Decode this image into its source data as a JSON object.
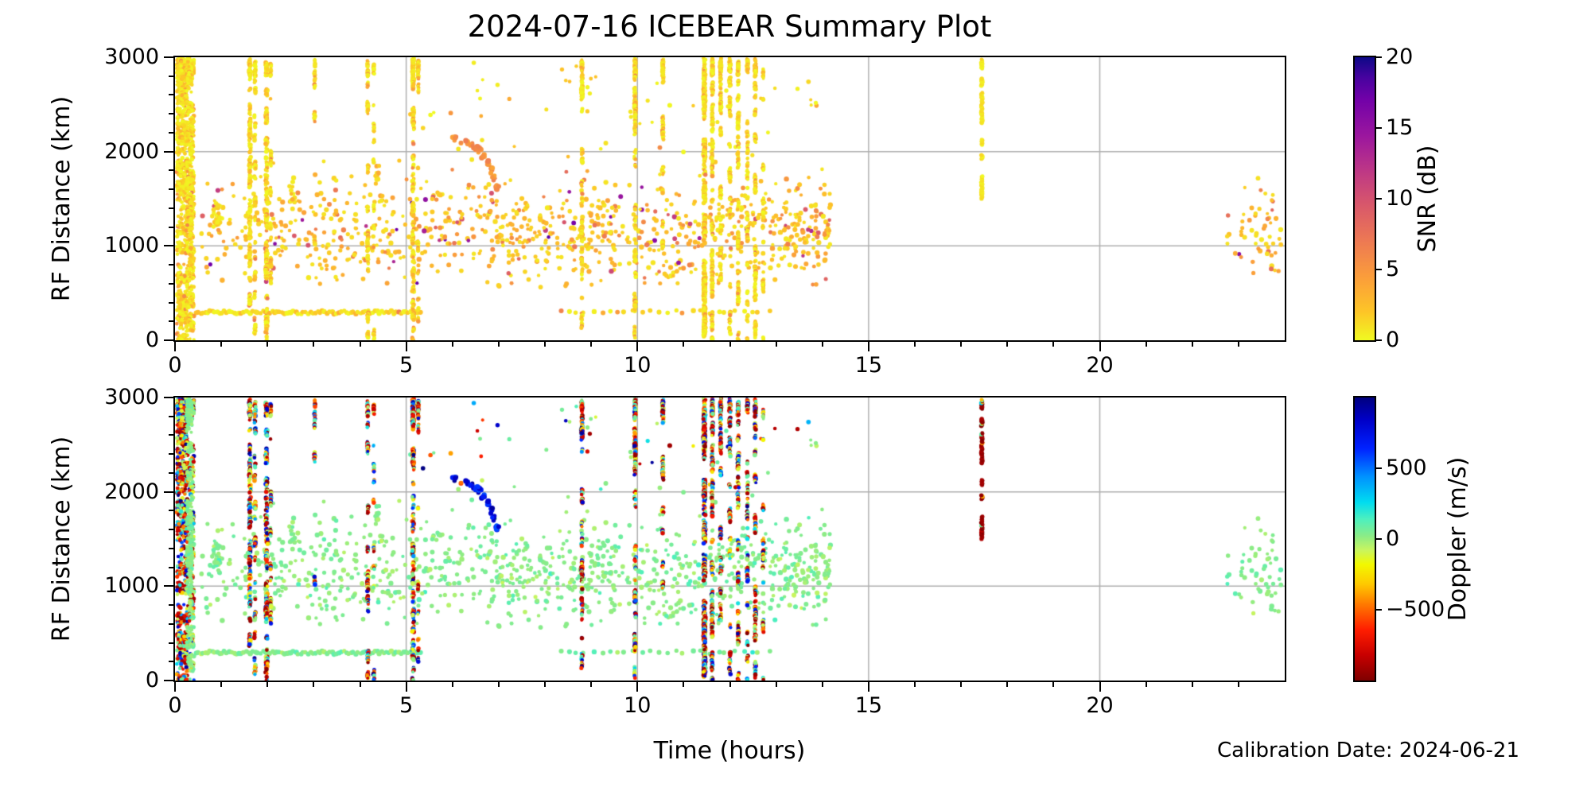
{
  "figure": {
    "title": "2024-07-16 ICEBEAR Summary Plot",
    "calibration_note": "Calibration Date: 2024-06-21",
    "background": "#ffffff",
    "grid_color": "#b0b0b0",
    "spine_color": "#000000"
  },
  "axes": {
    "x": {
      "label": "Time (hours)",
      "min": 0,
      "max": 24,
      "major_ticks": [
        0,
        5,
        10,
        15,
        20
      ],
      "major_tick_labels": [
        "0",
        "5",
        "10",
        "15",
        "20"
      ],
      "minor_tick_every": 1,
      "grid": true
    },
    "y": {
      "label": "RF Distance (km)",
      "min": 0,
      "max": 3000,
      "major_ticks": [
        0,
        1000,
        2000,
        3000
      ],
      "major_tick_labels": [
        "0",
        "1000",
        "2000",
        "3000"
      ],
      "minor_tick_every": 200,
      "grid": true
    }
  },
  "colorbars": {
    "snr": {
      "label": "SNR (dB)",
      "min": 0,
      "max": 20,
      "ticks": [
        0,
        5,
        10,
        15,
        20
      ],
      "tick_labels": [
        "0",
        "5",
        "10",
        "15",
        "20"
      ],
      "colormap": "plasma_r",
      "stops": [
        {
          "p": 0.0,
          "c": "#f0f921"
        },
        {
          "p": 0.1,
          "c": "#fdc527"
        },
        {
          "p": 0.22,
          "c": "#fb9e3a"
        },
        {
          "p": 0.35,
          "c": "#ed7953"
        },
        {
          "p": 0.48,
          "c": "#d8576b"
        },
        {
          "p": 0.6,
          "c": "#bd3786"
        },
        {
          "p": 0.72,
          "c": "#9c179e"
        },
        {
          "p": 0.85,
          "c": "#7201a8"
        },
        {
          "p": 0.93,
          "c": "#46039f"
        },
        {
          "p": 1.0,
          "c": "#0d0887"
        }
      ]
    },
    "doppler": {
      "label": "Doppler (m/s)",
      "min": -1000,
      "max": 1000,
      "ticks": [
        -500,
        0,
        500
      ],
      "tick_labels": [
        "−500",
        "0",
        "500"
      ],
      "colormap": "jet_r",
      "stops": [
        {
          "p": 0.0,
          "c": "#7f0000"
        },
        {
          "p": 0.09,
          "c": "#c80000"
        },
        {
          "p": 0.18,
          "c": "#ff1e00"
        },
        {
          "p": 0.27,
          "c": "#ff7a00"
        },
        {
          "p": 0.34,
          "c": "#ffc800"
        },
        {
          "p": 0.41,
          "c": "#f2f900"
        },
        {
          "p": 0.46,
          "c": "#c9f55e"
        },
        {
          "p": 0.51,
          "c": "#8cec86"
        },
        {
          "p": 0.57,
          "c": "#4df0be"
        },
        {
          "p": 0.63,
          "c": "#00dcf0"
        },
        {
          "p": 0.72,
          "c": "#0092ff"
        },
        {
          "p": 0.82,
          "c": "#0022ff"
        },
        {
          "p": 0.92,
          "c": "#0000c8"
        },
        {
          "p": 1.0,
          "c": "#00007f"
        }
      ]
    }
  },
  "chart_data": {
    "type": "scatter",
    "title": "2024-07-16 ICEBEAR Summary Plot",
    "xlabel": "Time (hours)",
    "xlim": [
      0,
      24
    ],
    "subplots": [
      {
        "id": "snr",
        "ylabel": "RF Distance (km)",
        "ylim": [
          0,
          3000
        ],
        "color_by": "SNR (dB)",
        "clim": [
          0,
          20
        ],
        "colormap": "plasma_r"
      },
      {
        "id": "doppler",
        "ylabel": "RF Distance (km)",
        "ylim": [
          0,
          3000
        ],
        "color_by": "Doppler (m/s)",
        "clim": [
          -1000,
          1000
        ],
        "colormap": "jet_r"
      }
    ],
    "seed": 20240716,
    "features": [
      {
        "name": "echo-cloud",
        "kind": "cloud",
        "t": [
          0.35,
          14.2
        ],
        "km_mean": 1150,
        "km_sd": 290,
        "km_clip": [
          560,
          1950
        ],
        "n": 950,
        "snr": "cloud",
        "dop": "near_zero"
      },
      {
        "name": "high-sparse",
        "kind": "sprinkle",
        "t": [
          5.0,
          13.9
        ],
        "km": [
          1850,
          2950
        ],
        "n": 55,
        "snr": "low",
        "dop": "sparse_mix"
      },
      {
        "name": "low-row-early",
        "kind": "row",
        "t": [
          0.45,
          5.35
        ],
        "km": 295,
        "n": 95,
        "snr": "low",
        "dop": "near_zero"
      },
      {
        "name": "low-row-mid",
        "kind": "row",
        "t": [
          8.3,
          13.0
        ],
        "km": 300,
        "n": 26,
        "snr": "low",
        "dop": "near_zero"
      },
      {
        "name": "blob-0.9h-1320km",
        "kind": "blob",
        "t": 0.92,
        "km": 1320,
        "t_sd": 0.05,
        "km_sd": 75,
        "n": 26,
        "snr": "low",
        "dop": "near_zero"
      },
      {
        "name": "arc-2.55h-1530km",
        "kind": "blob",
        "t": 2.55,
        "km": 1530,
        "t_sd": 0.03,
        "km_sd": 55,
        "n": 14,
        "snr": "low",
        "dop": "near_zero"
      },
      {
        "name": "blob-4.35h-1760km",
        "kind": "blob",
        "t": 4.36,
        "km": 1760,
        "t_sd": 0.03,
        "km_sd": 40,
        "n": 10,
        "snr": "low",
        "dop": "near_zero"
      },
      {
        "name": "fast-doppler-trail",
        "kind": "trail",
        "centers": [
          [
            6.05,
            2145
          ],
          [
            6.32,
            2100
          ],
          [
            6.44,
            2070
          ],
          [
            6.52,
            2040
          ],
          [
            6.6,
            2015
          ],
          [
            6.68,
            1950
          ],
          [
            6.76,
            1880
          ],
          [
            6.84,
            1790
          ],
          [
            6.9,
            1705
          ],
          [
            6.96,
            1615
          ]
        ],
        "per": 5,
        "t_sd": 0.02,
        "km_sd": 18,
        "snr": "mid",
        "dop": "blue"
      },
      {
        "name": "trail-outlier",
        "kind": "blob",
        "t": 6.2,
        "km": 2090,
        "t_sd": 0.01,
        "km_sd": 8,
        "n": 2,
        "snr": "mid",
        "dop": "neg"
      },
      {
        "name": "hour0-burst-a",
        "kind": "stripe",
        "t": 0.16,
        "w": 0.24,
        "n": 1000,
        "snr": "low",
        "dop": "mixed"
      },
      {
        "name": "hour0-burst-b",
        "kind": "stripe",
        "t": 0.36,
        "w": 0.1,
        "n": 420,
        "snr": "low",
        "dop": "mixed_green"
      },
      {
        "name": "hour0-green-column",
        "kind": "stripe",
        "t": 0.31,
        "w": 0.12,
        "n": 260,
        "snr": "low",
        "dop": "near_zero"
      },
      {
        "name": "rfi-stripe-1.62h",
        "kind": "stripe",
        "t": 1.62,
        "w": 0.04,
        "n": 260,
        "snr": "low",
        "dop": "mixed"
      },
      {
        "name": "rfi-stripe-1.73h",
        "kind": "stripe",
        "t": 1.73,
        "w": 0.03,
        "n": 150,
        "snr": "low",
        "dop": "mixed"
      },
      {
        "name": "rfi-stripe-1.98h",
        "kind": "stripe",
        "t": 1.98,
        "w": 0.045,
        "n": 280,
        "snr": "low",
        "dop": "mixed"
      },
      {
        "name": "rfi-stripe-2.07h",
        "kind": "stripe",
        "t": 2.07,
        "w": 0.02,
        "n": 70,
        "snr": "low",
        "dop": "mixed"
      },
      {
        "name": "rfi-stripe-3.02h",
        "kind": "stripe",
        "t": 3.02,
        "w": 0.02,
        "n": 45,
        "snr": "low",
        "dop": "mixed"
      },
      {
        "name": "rfi-stripe-4.17h",
        "kind": "stripe",
        "t": 4.17,
        "w": 0.025,
        "n": 130,
        "snr": "low",
        "dop": "mixed"
      },
      {
        "name": "rfi-stripe-4.30h",
        "kind": "stripe",
        "t": 4.3,
        "w": 0.02,
        "n": 55,
        "snr": "low",
        "dop": "mixed"
      },
      {
        "name": "rfi-stripe-5.15h",
        "kind": "stripe",
        "t": 5.15,
        "w": 0.04,
        "n": 300,
        "snr": "low",
        "dop": "mixed"
      },
      {
        "name": "rfi-stripe-5.26h",
        "kind": "stripe",
        "t": 5.26,
        "w": 0.02,
        "n": 80,
        "snr": "low",
        "dop": "mixed"
      },
      {
        "name": "rfi-stripe-8.80h",
        "kind": "stripe",
        "t": 8.8,
        "w": 0.03,
        "n": 190,
        "snr": "low",
        "dop": "mixed"
      },
      {
        "name": "rfi-stripe-9.95h",
        "kind": "stripe",
        "t": 9.95,
        "w": 0.035,
        "n": 240,
        "snr": "low",
        "dop": "mixed"
      },
      {
        "name": "rfi-stripe-10.55h",
        "kind": "stripe",
        "t": 10.55,
        "w": 0.03,
        "n": 120,
        "snr": "low",
        "dop": "mixed"
      },
      {
        "name": "rfi-stripe-11.45h",
        "kind": "stripe",
        "t": 11.45,
        "w": 0.05,
        "n": 550,
        "solid": true,
        "snr": "low",
        "dop": "mixed"
      },
      {
        "name": "rfi-stripe-11.62h",
        "kind": "stripe",
        "t": 11.62,
        "w": 0.03,
        "n": 280,
        "snr": "low",
        "dop": "mixed"
      },
      {
        "name": "rfi-stripe-11.80h",
        "kind": "stripe",
        "t": 11.8,
        "w": 0.03,
        "n": 170,
        "snr": "low",
        "dop": "mixed"
      },
      {
        "name": "rfi-stripe-12.00h",
        "kind": "stripe",
        "t": 12.0,
        "w": 0.03,
        "n": 150,
        "snr": "low",
        "dop": "mixed"
      },
      {
        "name": "rfi-stripe-12.18h",
        "kind": "stripe",
        "t": 12.18,
        "w": 0.03,
        "n": 190,
        "snr": "low",
        "dop": "mixed"
      },
      {
        "name": "rfi-stripe-12.38h",
        "kind": "stripe",
        "t": 12.38,
        "w": 0.025,
        "n": 140,
        "snr": "low",
        "dop": "mixed"
      },
      {
        "name": "rfi-stripe-12.55h",
        "kind": "stripe",
        "t": 12.55,
        "w": 0.03,
        "n": 200,
        "snr": "low",
        "dop": "mixed"
      },
      {
        "name": "rfi-stripe-12.72h",
        "kind": "stripe",
        "t": 12.72,
        "w": 0.02,
        "n": 70,
        "snr": "low",
        "dop": "mixed"
      },
      {
        "name": "stripe-17.45h",
        "kind": "segments",
        "t": 17.45,
        "w": 0.03,
        "segments": [
          [
            2880,
            2985
          ],
          [
            2700,
            2775
          ],
          [
            2300,
            2630
          ],
          [
            2070,
            2130
          ],
          [
            1925,
            1965
          ],
          [
            1500,
            1745
          ]
        ],
        "step": 9,
        "snr": "verylow",
        "dop": "darkred"
      },
      {
        "name": "late-cluster-23h",
        "kind": "cloud",
        "t": [
          22.75,
          23.92
        ],
        "km_mean": 1150,
        "km_sd": 330,
        "km_clip": [
          640,
          1770
        ],
        "n": 58,
        "snr": "cloud",
        "dop": "near_zero"
      }
    ]
  }
}
